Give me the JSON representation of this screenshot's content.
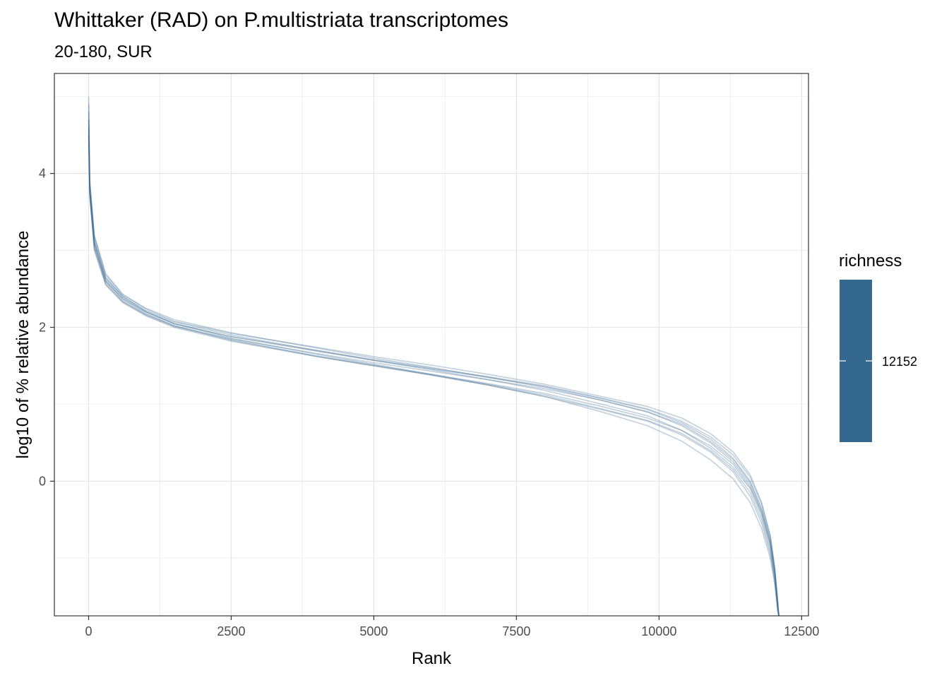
{
  "chart_data": {
    "type": "line",
    "title": "Whittaker (RAD) on P.multistriata transcriptomes",
    "subtitle": "20-180, SUR",
    "xlabel": "Rank",
    "ylabel": "log10 of % relative abundance",
    "xlim": [
      -600,
      12620
    ],
    "ylim": [
      -1.75,
      5.3
    ],
    "x_ticks": [
      0,
      2500,
      5000,
      7500,
      10000,
      12500
    ],
    "x_tick_labels": [
      "0",
      "2500",
      "5000",
      "7500",
      "10000",
      "12500"
    ],
    "y_ticks": [
      0,
      2,
      4
    ],
    "y_tick_labels": [
      "0",
      "2",
      "4"
    ],
    "grid": true,
    "line_color": "#35688F",
    "legend": {
      "title": "richness",
      "position": "right",
      "label": "12152",
      "color": "#35688F"
    },
    "series": [
      {
        "x": [
          1,
          20,
          100,
          300,
          600,
          1000,
          1500,
          2500,
          4000,
          5000,
          6000,
          7000,
          8000,
          9000,
          9800,
          10400,
          10900,
          11300,
          11600,
          11800,
          11950,
          12030,
          12080,
          12100
        ],
        "values": [
          5.0,
          3.9,
          3.2,
          2.7,
          2.43,
          2.25,
          2.1,
          1.93,
          1.73,
          1.6,
          1.48,
          1.35,
          1.22,
          1.05,
          0.9,
          0.72,
          0.5,
          0.25,
          -0.05,
          -0.4,
          -0.8,
          -1.2,
          -1.6,
          -1.75
        ]
      },
      {
        "x": [
          1,
          20,
          100,
          300,
          600,
          1000,
          1500,
          2500,
          4000,
          5000,
          6000,
          7000,
          8000,
          9000,
          9800,
          10400,
          10900,
          11300,
          11600,
          11800,
          11950,
          12030,
          12080,
          12100
        ],
        "values": [
          4.8,
          3.85,
          3.15,
          2.65,
          2.4,
          2.22,
          2.07,
          1.9,
          1.7,
          1.57,
          1.45,
          1.32,
          1.18,
          1.0,
          0.85,
          0.66,
          0.43,
          0.18,
          -0.1,
          -0.45,
          -0.85,
          -1.25,
          -1.65,
          -1.75
        ]
      },
      {
        "x": [
          1,
          20,
          100,
          300,
          600,
          1000,
          1500,
          2500,
          4000,
          5000,
          6000,
          7000,
          8000,
          9000,
          9800,
          10400,
          10900,
          11300,
          11600,
          11800,
          11950,
          12030,
          12080,
          12100
        ],
        "values": [
          4.7,
          3.8,
          3.1,
          2.6,
          2.37,
          2.2,
          2.05,
          1.88,
          1.69,
          1.57,
          1.46,
          1.35,
          1.23,
          1.07,
          0.93,
          0.76,
          0.55,
          0.3,
          0.0,
          -0.35,
          -0.75,
          -1.15,
          -1.55,
          -1.75
        ]
      },
      {
        "x": [
          1,
          20,
          100,
          300,
          600,
          1000,
          1500,
          2500,
          4000,
          5000,
          6000,
          7000,
          8000,
          9000,
          9800,
          10400,
          10900,
          11300,
          11600,
          11800,
          11950,
          12030,
          12080,
          12100
        ],
        "values": [
          4.6,
          3.75,
          3.05,
          2.58,
          2.34,
          2.17,
          2.02,
          1.85,
          1.66,
          1.54,
          1.43,
          1.32,
          1.2,
          1.05,
          0.9,
          0.74,
          0.52,
          0.28,
          -0.02,
          -0.38,
          -0.78,
          -1.18,
          -1.6,
          -1.75
        ]
      },
      {
        "x": [
          1,
          20,
          100,
          300,
          600,
          1000,
          1500,
          2500,
          4000,
          5000,
          6000,
          7000,
          8000,
          9000,
          9800,
          10400,
          10900,
          11300,
          11600,
          11800,
          11950,
          12030,
          12080,
          12100
        ],
        "values": [
          4.5,
          3.75,
          3.05,
          2.6,
          2.36,
          2.18,
          2.02,
          1.83,
          1.62,
          1.5,
          1.38,
          1.25,
          1.1,
          0.93,
          0.78,
          0.6,
          0.38,
          0.12,
          -0.2,
          -0.55,
          -0.95,
          -1.3,
          -1.65,
          -1.75
        ]
      },
      {
        "x": [
          1,
          20,
          100,
          300,
          600,
          1000,
          1500,
          2500,
          4000,
          5000,
          6000,
          7000,
          8000,
          9000,
          9800,
          10400,
          10900,
          11300,
          11600,
          11800,
          11950,
          12030,
          12080,
          12100
        ],
        "values": [
          4.6,
          3.8,
          3.1,
          2.64,
          2.4,
          2.21,
          2.05,
          1.86,
          1.65,
          1.52,
          1.39,
          1.26,
          1.12,
          0.94,
          0.79,
          0.62,
          0.4,
          0.15,
          -0.15,
          -0.5,
          -0.9,
          -1.28,
          -1.65,
          -1.75
        ]
      },
      {
        "x": [
          1,
          20,
          100,
          300,
          600,
          1000,
          1500,
          2500,
          4000,
          5000,
          6000,
          7000,
          8000,
          9000,
          9800,
          10400,
          10900,
          11300,
          11600,
          11800,
          11950,
          12030,
          12080,
          12100
        ],
        "values": [
          4.4,
          3.7,
          3.0,
          2.55,
          2.32,
          2.15,
          2.0,
          1.82,
          1.62,
          1.5,
          1.38,
          1.25,
          1.1,
          0.9,
          0.72,
          0.52,
          0.28,
          0.03,
          -0.28,
          -0.62,
          -1.0,
          -1.35,
          -1.7,
          -1.75
        ]
      },
      {
        "x": [
          1,
          20,
          100,
          300,
          600,
          1000,
          1500,
          2500,
          4000,
          5000,
          6000,
          7000,
          8000,
          9000,
          9800,
          10400,
          10900,
          11300,
          11600,
          11800,
          11950,
          12030,
          12080,
          12100
        ],
        "values": [
          4.9,
          3.9,
          3.18,
          2.68,
          2.42,
          2.24,
          2.08,
          1.92,
          1.74,
          1.62,
          1.51,
          1.39,
          1.26,
          1.1,
          0.97,
          0.82,
          0.62,
          0.38,
          0.08,
          -0.28,
          -0.7,
          -1.12,
          -1.55,
          -1.75
        ]
      },
      {
        "x": [
          1,
          20,
          100,
          300,
          600,
          1000,
          1500,
          2500,
          4000,
          5000,
          6000,
          7000,
          8000,
          9000,
          9800,
          10400,
          10900,
          11300,
          11600,
          11800,
          11950,
          12030,
          12080,
          12100
        ],
        "values": [
          4.7,
          3.82,
          3.12,
          2.62,
          2.38,
          2.2,
          2.04,
          1.88,
          1.7,
          1.58,
          1.47,
          1.36,
          1.24,
          1.08,
          0.94,
          0.78,
          0.58,
          0.34,
          0.05,
          -0.3,
          -0.72,
          -1.15,
          -1.6,
          -1.75
        ]
      },
      {
        "x": [
          1,
          20,
          100,
          300,
          600,
          1000,
          1500,
          2500,
          4000,
          5000,
          6000,
          7000,
          8000,
          9000,
          9800,
          10400,
          10900,
          11300,
          11600,
          11800,
          11950,
          12030,
          12080,
          12100
        ],
        "values": [
          4.5,
          3.72,
          3.02,
          2.56,
          2.33,
          2.16,
          2.01,
          1.84,
          1.63,
          1.51,
          1.39,
          1.27,
          1.14,
          0.97,
          0.82,
          0.66,
          0.46,
          0.22,
          -0.08,
          -0.42,
          -0.82,
          -1.2,
          -1.62,
          -1.75
        ]
      }
    ]
  }
}
